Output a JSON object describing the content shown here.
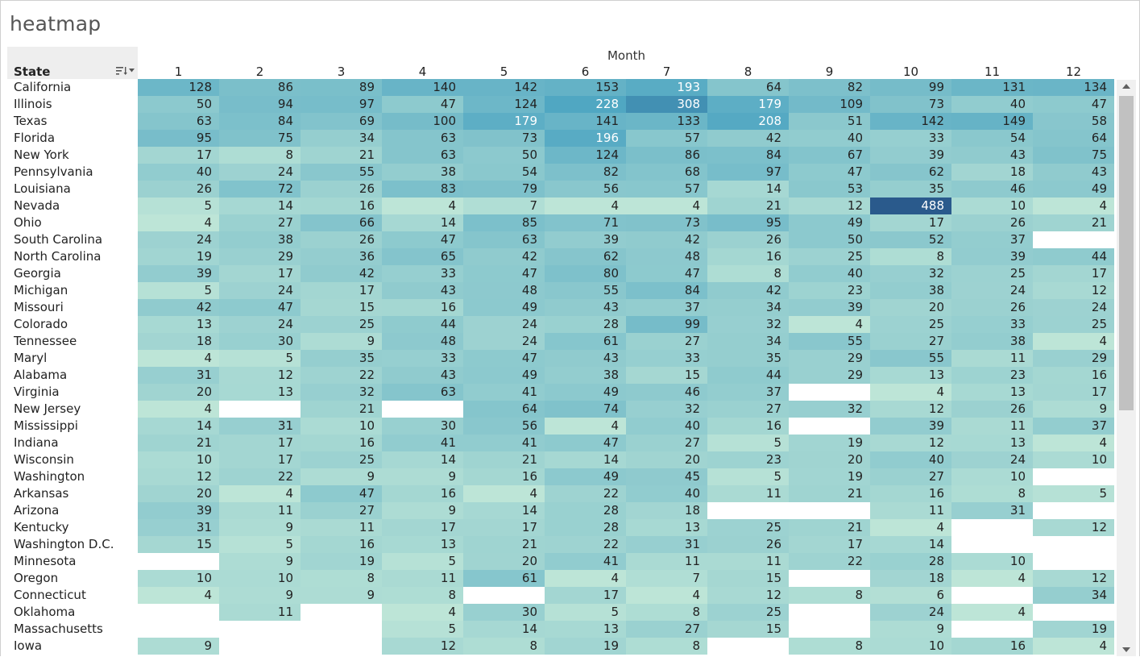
{
  "chart_data": {
    "type": "heatmap",
    "title": "heatmap",
    "row_header": "State",
    "column_header": "Month",
    "columns": [
      "1",
      "2",
      "3",
      "4",
      "5",
      "6",
      "7",
      "8",
      "9",
      "10",
      "11",
      "12"
    ],
    "rows": [
      {
        "state": "California",
        "values": [
          128,
          86,
          89,
          140,
          142,
          153,
          193,
          64,
          82,
          99,
          131,
          134
        ]
      },
      {
        "state": "Illinois",
        "values": [
          50,
          94,
          97,
          47,
          124,
          228,
          308,
          179,
          109,
          73,
          40,
          47
        ]
      },
      {
        "state": "Texas",
        "values": [
          63,
          84,
          69,
          100,
          179,
          141,
          133,
          208,
          51,
          142,
          149,
          58
        ]
      },
      {
        "state": "Florida",
        "values": [
          95,
          75,
          34,
          63,
          73,
          196,
          57,
          42,
          40,
          33,
          54,
          64
        ]
      },
      {
        "state": "New York",
        "values": [
          17,
          8,
          21,
          63,
          50,
          124,
          86,
          84,
          67,
          39,
          43,
          75
        ]
      },
      {
        "state": "Pennsylvania",
        "values": [
          40,
          24,
          55,
          38,
          54,
          82,
          68,
          97,
          47,
          62,
          18,
          43
        ]
      },
      {
        "state": "Louisiana",
        "values": [
          26,
          72,
          26,
          83,
          79,
          56,
          57,
          14,
          53,
          35,
          46,
          49
        ]
      },
      {
        "state": "Nevada",
        "values": [
          5,
          14,
          16,
          4,
          7,
          4,
          4,
          21,
          12,
          488,
          10,
          4
        ]
      },
      {
        "state": "Ohio",
        "values": [
          4,
          27,
          66,
          14,
          85,
          71,
          73,
          95,
          49,
          17,
          26,
          21
        ]
      },
      {
        "state": "South Carolina",
        "values": [
          24,
          38,
          26,
          47,
          63,
          39,
          42,
          26,
          50,
          52,
          37,
          null
        ]
      },
      {
        "state": "North Carolina",
        "values": [
          19,
          29,
          36,
          65,
          42,
          62,
          48,
          16,
          25,
          8,
          39,
          44
        ]
      },
      {
        "state": "Georgia",
        "values": [
          39,
          17,
          42,
          33,
          47,
          80,
          47,
          8,
          40,
          32,
          25,
          17
        ]
      },
      {
        "state": "Michigan",
        "values": [
          5,
          24,
          17,
          43,
          48,
          55,
          84,
          42,
          23,
          38,
          24,
          12
        ]
      },
      {
        "state": "Missouri",
        "values": [
          42,
          47,
          15,
          16,
          49,
          43,
          37,
          34,
          39,
          20,
          26,
          24
        ]
      },
      {
        "state": "Colorado",
        "values": [
          13,
          24,
          25,
          44,
          24,
          28,
          99,
          32,
          4,
          25,
          33,
          25
        ]
      },
      {
        "state": "Tennessee",
        "values": [
          18,
          30,
          9,
          48,
          24,
          61,
          27,
          34,
          55,
          27,
          38,
          4
        ]
      },
      {
        "state": "Maryl",
        "values": [
          4,
          5,
          35,
          33,
          47,
          43,
          33,
          35,
          29,
          55,
          11,
          29
        ]
      },
      {
        "state": "Alabama",
        "values": [
          31,
          12,
          22,
          43,
          49,
          38,
          15,
          44,
          29,
          13,
          23,
          16
        ]
      },
      {
        "state": "Virginia",
        "values": [
          20,
          13,
          32,
          63,
          41,
          49,
          46,
          37,
          null,
          4,
          13,
          17
        ]
      },
      {
        "state": "New Jersey",
        "values": [
          4,
          null,
          21,
          null,
          64,
          74,
          32,
          27,
          32,
          12,
          26,
          9
        ]
      },
      {
        "state": "Mississippi",
        "values": [
          14,
          31,
          10,
          30,
          56,
          4,
          40,
          16,
          null,
          39,
          11,
          37
        ]
      },
      {
        "state": "Indiana",
        "values": [
          21,
          17,
          16,
          41,
          41,
          47,
          27,
          5,
          19,
          12,
          13,
          4
        ]
      },
      {
        "state": "Wisconsin",
        "values": [
          10,
          17,
          25,
          14,
          21,
          14,
          20,
          23,
          20,
          40,
          24,
          10
        ]
      },
      {
        "state": "Washington",
        "values": [
          12,
          22,
          9,
          9,
          16,
          49,
          45,
          5,
          19,
          27,
          10,
          null
        ]
      },
      {
        "state": "Arkansas",
        "values": [
          20,
          4,
          47,
          16,
          4,
          22,
          40,
          11,
          21,
          16,
          8,
          5
        ]
      },
      {
        "state": "Arizona",
        "values": [
          39,
          11,
          27,
          9,
          14,
          28,
          18,
          null,
          null,
          11,
          31,
          null
        ]
      },
      {
        "state": "Kentucky",
        "values": [
          31,
          9,
          11,
          17,
          17,
          28,
          13,
          25,
          21,
          4,
          null,
          12
        ]
      },
      {
        "state": "Washington D.C.",
        "values": [
          15,
          5,
          16,
          13,
          21,
          22,
          31,
          26,
          17,
          14,
          null,
          null
        ]
      },
      {
        "state": "Minnesota",
        "values": [
          null,
          9,
          19,
          5,
          20,
          41,
          11,
          11,
          22,
          28,
          10,
          null
        ]
      },
      {
        "state": "Oregon",
        "values": [
          10,
          10,
          8,
          11,
          61,
          4,
          7,
          15,
          null,
          18,
          4,
          12
        ]
      },
      {
        "state": "Connecticut",
        "values": [
          4,
          9,
          9,
          8,
          null,
          17,
          4,
          12,
          8,
          6,
          null,
          34
        ]
      },
      {
        "state": "Oklahoma",
        "values": [
          null,
          11,
          null,
          4,
          30,
          5,
          8,
          25,
          null,
          24,
          4,
          null
        ]
      },
      {
        "state": "Massachusetts",
        "values": [
          null,
          null,
          null,
          5,
          14,
          13,
          27,
          15,
          null,
          9,
          null,
          19
        ]
      },
      {
        "state": "Iowa",
        "values": [
          9,
          null,
          null,
          12,
          8,
          19,
          8,
          null,
          8,
          10,
          16,
          4
        ]
      }
    ],
    "color_scale": {
      "low": "#bde5d7",
      "mid": "#4aa3c1",
      "high": "#2a5a8c",
      "empty": "#ffffff"
    }
  },
  "icons": {
    "sort": "sort-descending-icon",
    "scroll_up": "chevron-up-icon",
    "scroll_down": "chevron-down-icon"
  }
}
